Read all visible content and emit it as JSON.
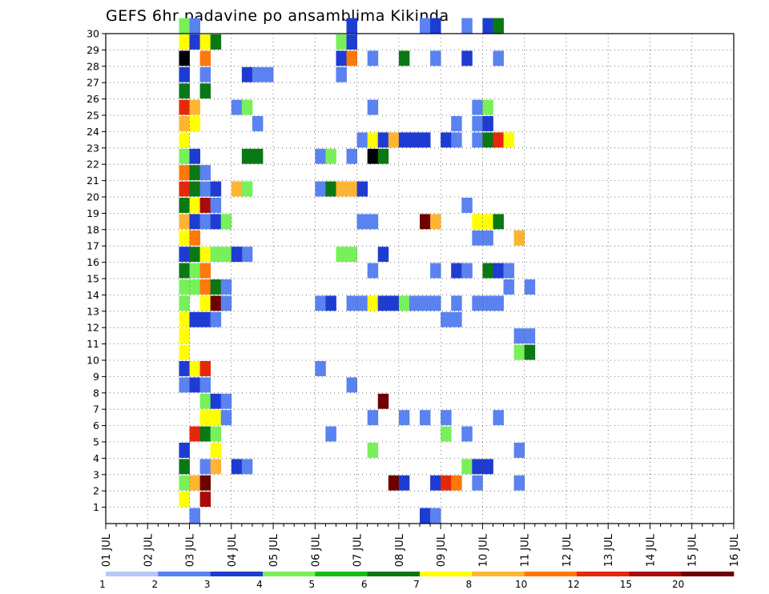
{
  "chart_data": {
    "type": "heatmap",
    "title": "GEFS 6hr padavine po ansamblima Kikinda",
    "x_tick_labels": [
      "01 JUL",
      "02 JUL",
      "03 JUL",
      "04 JUL",
      "05 JUL",
      "06 JUL",
      "07 JUL",
      "08 JUL",
      "09 JUL",
      "10 JUL",
      "11 JUL",
      "12 JUL",
      "13 JUL",
      "14 JUL",
      "15 JUL",
      "16 JUL"
    ],
    "y_tick_labels": [
      "1",
      "2",
      "3",
      "4",
      "5",
      "6",
      "7",
      "8",
      "9",
      "10",
      "11",
      "12",
      "13",
      "14",
      "15",
      "16",
      "17",
      "18",
      "19",
      "20",
      "21",
      "22",
      "23",
      "24",
      "25",
      "26",
      "27",
      "28",
      "29",
      "30"
    ],
    "ylim": [
      0,
      30
    ],
    "x_start": "01 JUL 00z",
    "x_step_hours": 6,
    "grid": true,
    "legend": {
      "position": "bottom",
      "labels": [
        "1",
        "2",
        "3",
        "4",
        "5",
        "6",
        "7",
        "8",
        "10",
        "12",
        "15",
        "20"
      ],
      "colors": [
        "#b4c8f5",
        "#5a82f0",
        "#1e3cd2",
        "#78f05a",
        "#14be14",
        "#0a7814",
        "#ffff00",
        "#ffb432",
        "#ff780a",
        "#e6280a",
        "#aa0a0a",
        "#6e0000"
      ]
    },
    "cells": [
      [
        7,
        30,
        3
      ],
      [
        8,
        30,
        1
      ],
      [
        7,
        29,
        6
      ],
      [
        8,
        29,
        2
      ],
      [
        9,
        29,
        6
      ],
      [
        10,
        29,
        5
      ],
      [
        7,
        28,
        12
      ],
      [
        9,
        28,
        8
      ],
      [
        7,
        27,
        2
      ],
      [
        9,
        27,
        1
      ],
      [
        7,
        26,
        5
      ],
      [
        9,
        26,
        5
      ],
      [
        7,
        25,
        9
      ],
      [
        8,
        25,
        7
      ],
      [
        7,
        24,
        7
      ],
      [
        8,
        24,
        6
      ],
      [
        7,
        23,
        6
      ],
      [
        7,
        22,
        3
      ],
      [
        8,
        22,
        2
      ],
      [
        7,
        21,
        8
      ],
      [
        8,
        21,
        5
      ],
      [
        9,
        21,
        1
      ],
      [
        7,
        20,
        9
      ],
      [
        8,
        20,
        5
      ],
      [
        9,
        20,
        1
      ],
      [
        7,
        19,
        5
      ],
      [
        8,
        19,
        6
      ],
      [
        9,
        19,
        10
      ],
      [
        7,
        18,
        7
      ],
      [
        8,
        18,
        2
      ],
      [
        9,
        18,
        1
      ],
      [
        10,
        18,
        2
      ],
      [
        11,
        18,
        3
      ],
      [
        7,
        17,
        6
      ],
      [
        8,
        17,
        8
      ],
      [
        7,
        16,
        2
      ],
      [
        8,
        16,
        5
      ],
      [
        9,
        16,
        6
      ],
      [
        10,
        16,
        3
      ],
      [
        11,
        16,
        3
      ],
      [
        12,
        16,
        3
      ],
      [
        13,
        16,
        1
      ],
      [
        7,
        15,
        5
      ],
      [
        8,
        15,
        3
      ],
      [
        9,
        15,
        8
      ],
      [
        7,
        14,
        3
      ],
      [
        8,
        14,
        3
      ],
      [
        9,
        14,
        8
      ],
      [
        10,
        14,
        5
      ],
      [
        11,
        14,
        1
      ],
      [
        7,
        13,
        3
      ],
      [
        9,
        13,
        6
      ],
      [
        10,
        13,
        11
      ],
      [
        11,
        13,
        1
      ],
      [
        7,
        12,
        6
      ],
      [
        8,
        12,
        2
      ],
      [
        9,
        12,
        2
      ],
      [
        10,
        12,
        1
      ],
      [
        7,
        11,
        6
      ],
      [
        7,
        10,
        6
      ],
      [
        7,
        9,
        2
      ],
      [
        8,
        9,
        6
      ],
      [
        9,
        9,
        9
      ],
      [
        7,
        8,
        1
      ],
      [
        8,
        8,
        2
      ],
      [
        9,
        8,
        1
      ],
      [
        9,
        7,
        3
      ],
      [
        10,
        7,
        2
      ],
      [
        11,
        7,
        1
      ],
      [
        9,
        6,
        6
      ],
      [
        10,
        6,
        6
      ],
      [
        11,
        6,
        1
      ],
      [
        8,
        5,
        9
      ],
      [
        9,
        5,
        5
      ],
      [
        10,
        5,
        3
      ],
      [
        7,
        4,
        2
      ],
      [
        10,
        4,
        6
      ],
      [
        7,
        3,
        5
      ],
      [
        9,
        3,
        1
      ],
      [
        10,
        3,
        7
      ],
      [
        7,
        2,
        3
      ],
      [
        8,
        2,
        7
      ],
      [
        9,
        2,
        11
      ],
      [
        7,
        1,
        6
      ],
      [
        9,
        1,
        10
      ],
      [
        8,
        0,
        1
      ],
      [
        23,
        30,
        2
      ],
      [
        30,
        30,
        1
      ],
      [
        31,
        30,
        2
      ],
      [
        34,
        30,
        1
      ],
      [
        36,
        30,
        2
      ],
      [
        37,
        30,
        5
      ],
      [
        22,
        29,
        3
      ],
      [
        23,
        29,
        2
      ],
      [
        22,
        28,
        2
      ],
      [
        23,
        28,
        8
      ],
      [
        25,
        28,
        1
      ],
      [
        28,
        28,
        5
      ],
      [
        31,
        28,
        1
      ],
      [
        34,
        28,
        2
      ],
      [
        37,
        28,
        1
      ],
      [
        22,
        27,
        1
      ],
      [
        13,
        27,
        2
      ],
      [
        14,
        27,
        1
      ],
      [
        15,
        27,
        1
      ],
      [
        12,
        25,
        1
      ],
      [
        13,
        25,
        3
      ],
      [
        25,
        25,
        1
      ],
      [
        35,
        25,
        1
      ],
      [
        36,
        25,
        3
      ],
      [
        14,
        24,
        1
      ],
      [
        33,
        24,
        1
      ],
      [
        35,
        24,
        1
      ],
      [
        36,
        24,
        2
      ],
      [
        24,
        23,
        1
      ],
      [
        25,
        23,
        6
      ],
      [
        26,
        23,
        2
      ],
      [
        27,
        23,
        7
      ],
      [
        28,
        23,
        2
      ],
      [
        29,
        23,
        2
      ],
      [
        30,
        23,
        2
      ],
      [
        32,
        23,
        2
      ],
      [
        33,
        23,
        1
      ],
      [
        35,
        23,
        1
      ],
      [
        36,
        23,
        5
      ],
      [
        37,
        23,
        9
      ],
      [
        38,
        23,
        6
      ],
      [
        13,
        22,
        5
      ],
      [
        14,
        22,
        5
      ],
      [
        20,
        22,
        1
      ],
      [
        21,
        22,
        3
      ],
      [
        23,
        22,
        1
      ],
      [
        25,
        22,
        12
      ],
      [
        26,
        22,
        5
      ],
      [
        10,
        20,
        2
      ],
      [
        12,
        20,
        7
      ],
      [
        13,
        20,
        3
      ],
      [
        20,
        20,
        1
      ],
      [
        21,
        20,
        5
      ],
      [
        22,
        20,
        7
      ],
      [
        23,
        20,
        7
      ],
      [
        24,
        20,
        2
      ],
      [
        10,
        19,
        1
      ],
      [
        34,
        19,
        1
      ],
      [
        24,
        18,
        1
      ],
      [
        25,
        18,
        1
      ],
      [
        30,
        18,
        11
      ],
      [
        31,
        18,
        7
      ],
      [
        35,
        18,
        6
      ],
      [
        36,
        18,
        6
      ],
      [
        37,
        18,
        5
      ],
      [
        35,
        17,
        1
      ],
      [
        36,
        17,
        1
      ],
      [
        39,
        17,
        7
      ],
      [
        12,
        16,
        2
      ],
      [
        22,
        16,
        3
      ],
      [
        23,
        16,
        3
      ],
      [
        26,
        16,
        2
      ],
      [
        25,
        15,
        1
      ],
      [
        31,
        15,
        1
      ],
      [
        33,
        15,
        2
      ],
      [
        34,
        15,
        1
      ],
      [
        36,
        15,
        5
      ],
      [
        37,
        15,
        2
      ],
      [
        38,
        15,
        1
      ],
      [
        38,
        14,
        1
      ],
      [
        40,
        14,
        1
      ],
      [
        20,
        13,
        1
      ],
      [
        21,
        13,
        2
      ],
      [
        23,
        13,
        1
      ],
      [
        24,
        13,
        1
      ],
      [
        25,
        13,
        6
      ],
      [
        26,
        13,
        2
      ],
      [
        27,
        13,
        2
      ],
      [
        28,
        13,
        3
      ],
      [
        29,
        13,
        1
      ],
      [
        30,
        13,
        1
      ],
      [
        31,
        13,
        1
      ],
      [
        33,
        13,
        1
      ],
      [
        35,
        13,
        1
      ],
      [
        36,
        13,
        1
      ],
      [
        37,
        13,
        1
      ],
      [
        32,
        12,
        1
      ],
      [
        33,
        12,
        1
      ],
      [
        39,
        11,
        1
      ],
      [
        40,
        11,
        1
      ],
      [
        39,
        10,
        3
      ],
      [
        40,
        10,
        5
      ],
      [
        20,
        9,
        1
      ],
      [
        23,
        8,
        1
      ],
      [
        26,
        7,
        11
      ],
      [
        25,
        6,
        1
      ],
      [
        28,
        6,
        1
      ],
      [
        30,
        6,
        1
      ],
      [
        32,
        6,
        1
      ],
      [
        37,
        6,
        1
      ],
      [
        21,
        5,
        1
      ],
      [
        32,
        5,
        3
      ],
      [
        34,
        5,
        1
      ],
      [
        25,
        4,
        3
      ],
      [
        39,
        4,
        1
      ],
      [
        12,
        3,
        2
      ],
      [
        13,
        3,
        1
      ],
      [
        34,
        3,
        3
      ],
      [
        35,
        3,
        2
      ],
      [
        36,
        3,
        2
      ],
      [
        39,
        2,
        1
      ],
      [
        27,
        2,
        11
      ],
      [
        28,
        2,
        2
      ],
      [
        31,
        2,
        2
      ],
      [
        32,
        2,
        9
      ],
      [
        33,
        2,
        8
      ],
      [
        35,
        2,
        1
      ],
      [
        30,
        0,
        2
      ],
      [
        31,
        0,
        1
      ]
    ]
  }
}
